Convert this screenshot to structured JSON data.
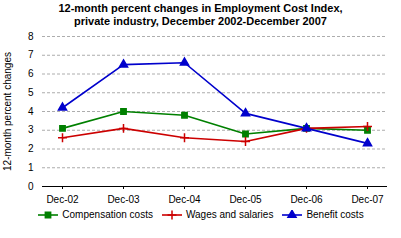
{
  "chart_data": {
    "type": "line",
    "title": "12-month percent changes in Employment Cost Index,",
    "subtitle": "private industry, December 2002-December 2007",
    "ylabel": "12-month percent changes",
    "categories": [
      "Dec-02",
      "Dec-03",
      "Dec-04",
      "Dec-05",
      "Dec-06",
      "Dec-07"
    ],
    "series": [
      {
        "name": "Compensation costs",
        "color": "#008000",
        "marker": "square",
        "values": [
          3.1,
          4.0,
          3.8,
          2.8,
          3.1,
          3.0
        ]
      },
      {
        "name": "Wages and salaries",
        "color": "#cc0000",
        "marker": "plus",
        "values": [
          2.6,
          3.1,
          2.6,
          2.4,
          3.1,
          3.2
        ]
      },
      {
        "name": "Benefit costs",
        "color": "#0000cc",
        "marker": "triangle",
        "values": [
          4.2,
          6.5,
          6.6,
          3.9,
          3.1,
          2.3
        ]
      }
    ],
    "ylim": [
      0,
      8
    ],
    "yticks": [
      0,
      1,
      2,
      3,
      4,
      5,
      6,
      7,
      8
    ],
    "grid": true,
    "legend": "bottom"
  }
}
